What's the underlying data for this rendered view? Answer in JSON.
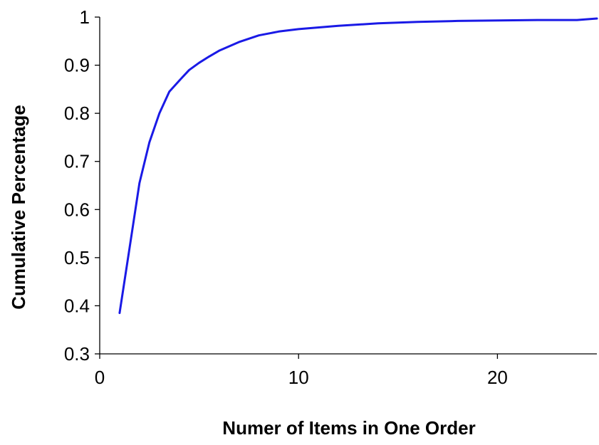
{
  "chart_data": {
    "type": "line",
    "title": "",
    "xlabel": "Numer of Items in One Order",
    "ylabel": "Cumulative Percentage",
    "xlim": [
      0,
      25
    ],
    "ylim": [
      0.3,
      1
    ],
    "xticks": [
      0,
      10,
      20
    ],
    "xtick_labels": [
      "0",
      "10",
      "20"
    ],
    "yticks": [
      0.3,
      0.4,
      0.5,
      0.6,
      0.7,
      0.8,
      0.9,
      1
    ],
    "ytick_labels": [
      "0.3",
      "0.4",
      "0.5",
      "0.6",
      "0.7",
      "0.8",
      "0.9",
      "1"
    ],
    "grid": false,
    "legend": "none",
    "series_color": "#1a1ae6",
    "series": [
      {
        "x": [
          1,
          1.5,
          2,
          2.5,
          3,
          3.5,
          4,
          4.5,
          5,
          5.5,
          6,
          7,
          8,
          9,
          10,
          12,
          14,
          16,
          18,
          20,
          22,
          24,
          25
        ],
        "values": [
          0.385,
          0.52,
          0.655,
          0.74,
          0.8,
          0.845,
          0.868,
          0.89,
          0.905,
          0.918,
          0.93,
          0.948,
          0.962,
          0.97,
          0.975,
          0.982,
          0.987,
          0.99,
          0.992,
          0.993,
          0.994,
          0.994,
          0.997
        ]
      }
    ]
  }
}
